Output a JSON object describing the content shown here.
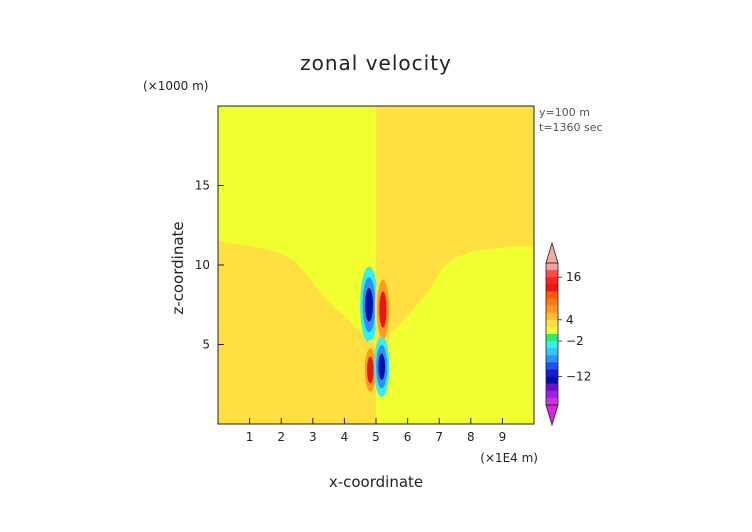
{
  "chart_data": {
    "type": "heatmap",
    "title": "zonal velocity",
    "xlabel": "x-coordinate",
    "ylabel": "z-coordinate",
    "x_unit": "(×1E4 m)",
    "y_unit": "(×1000 m)",
    "xlim": [
      0,
      10
    ],
    "ylim": [
      0,
      20
    ],
    "x_ticks": [
      "1",
      "2",
      "3",
      "4",
      "5",
      "6",
      "7",
      "8",
      "9"
    ],
    "x_tick_values": [
      1,
      2,
      3,
      4,
      5,
      6,
      7,
      8,
      9
    ],
    "y_ticks": [
      "5",
      "10",
      "15"
    ],
    "y_tick_values": [
      5,
      10,
      15
    ],
    "annotations": [
      "y=100 m",
      "t=1360 sec"
    ],
    "interface_left": [
      [
        0,
        11.5
      ],
      [
        0.5,
        11.35
      ],
      [
        1.0,
        11.2
      ],
      [
        1.5,
        11.0
      ],
      [
        2.0,
        10.7
      ],
      [
        2.4,
        10.3
      ],
      [
        2.8,
        9.4
      ],
      [
        3.2,
        8.4
      ],
      [
        3.6,
        7.5
      ],
      [
        4.0,
        6.8
      ],
      [
        4.4,
        6.0
      ],
      [
        4.7,
        5.4
      ],
      [
        4.9,
        5.2
      ],
      [
        5.0,
        5.0
      ]
    ],
    "interface_right": [
      [
        5.0,
        5.0
      ],
      [
        5.1,
        5.2
      ],
      [
        5.3,
        5.4
      ],
      [
        5.6,
        6.0
      ],
      [
        6.0,
        6.8
      ],
      [
        6.4,
        7.7
      ],
      [
        6.8,
        8.8
      ],
      [
        7.1,
        9.8
      ],
      [
        7.5,
        10.5
      ],
      [
        8.0,
        10.8
      ],
      [
        8.5,
        11.0
      ],
      [
        9.0,
        11.1
      ],
      [
        9.5,
        11.2
      ],
      [
        10.0,
        11.1
      ]
    ],
    "background_regions": [
      {
        "region": "left upper",
        "value": 1
      },
      {
        "region": "right upper",
        "value": 3
      },
      {
        "region": "left lower",
        "value": 3
      },
      {
        "region": "right lower",
        "value": 1
      }
    ],
    "features": [
      {
        "x": 4.78,
        "z": 7.5,
        "rx": 0.28,
        "rz": 2.4,
        "levels": [
          -2,
          -6,
          -12
        ]
      },
      {
        "x": 5.22,
        "z": 7.2,
        "rx": 0.26,
        "rz": 2.6,
        "levels": [
          4,
          8,
          14
        ]
      },
      {
        "x": 4.82,
        "z": 3.4,
        "rx": 0.24,
        "rz": 1.9,
        "levels": [
          4,
          8,
          14
        ]
      },
      {
        "x": 5.18,
        "z": 3.6,
        "rx": 0.24,
        "rz": 1.9,
        "levels": [
          -2,
          -6,
          -12
        ]
      }
    ],
    "colorbar": {
      "label_values": [
        "16",
        "4",
        "−2",
        "−12"
      ],
      "label_levels": [
        16,
        4,
        -2,
        -12
      ],
      "levels": [
        20,
        18,
        16,
        14,
        12,
        10,
        8,
        6,
        4,
        2,
        0,
        -2,
        -4,
        -6,
        -8,
        -10,
        -12,
        -14,
        -16,
        -18,
        -20
      ],
      "colors": [
        "#f6a0a0",
        "#ff4848",
        "#ff2020",
        "#e81818",
        "#ff5a00",
        "#ff7a10",
        "#ff9a20",
        "#ffba30",
        "#ffe040",
        "#f0ff30",
        "#30e878",
        "#30f0f0",
        "#30c8f8",
        "#3090f8",
        "#2050f0",
        "#1020d8",
        "#0010a8",
        "#7010d0",
        "#a020e0",
        "#d030e0"
      ],
      "top_arrow_color": "#f6a8a8",
      "bottom_arrow_color": "#e020e0"
    }
  }
}
